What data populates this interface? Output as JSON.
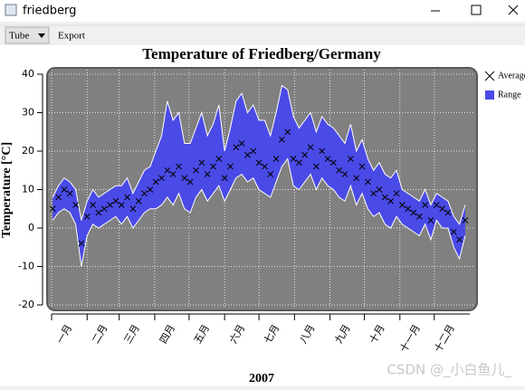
{
  "window": {
    "title": "friedberg"
  },
  "toolbar": {
    "combo": "Tube",
    "button": "Export"
  },
  "watermark": "CSDN @_小白鱼儿_",
  "chart_data": {
    "type": "range",
    "title": "Temperature of Friedberg/Germany",
    "x_label": "2007",
    "y_label": "Temperature [°C]",
    "x": [
      1,
      6,
      11,
      16,
      21,
      26,
      31,
      36,
      41,
      46,
      51,
      56,
      61,
      66,
      71,
      76,
      81,
      86,
      91,
      96,
      101,
      106,
      111,
      116,
      121,
      126,
      131,
      136,
      141,
      146,
      151,
      156,
      161,
      166,
      171,
      176,
      181,
      186,
      191,
      196,
      201,
      206,
      211,
      216,
      221,
      226,
      231,
      236,
      241,
      246,
      251,
      256,
      261,
      266,
      271,
      276,
      281,
      286,
      291,
      296,
      301,
      306,
      311,
      316,
      321,
      326,
      331,
      336,
      341,
      346,
      351,
      356,
      361
    ],
    "xlim": [
      0,
      365
    ],
    "xticks": [
      {
        "value": 0,
        "label": "一月"
      },
      {
        "value": 31,
        "label": "二月"
      },
      {
        "value": 59,
        "label": "三月"
      },
      {
        "value": 90,
        "label": "四月"
      },
      {
        "value": 120,
        "label": "五月"
      },
      {
        "value": 151,
        "label": "六月"
      },
      {
        "value": 181,
        "label": "七月"
      },
      {
        "value": 212,
        "label": "八月"
      },
      {
        "value": 243,
        "label": "九月"
      },
      {
        "value": 273,
        "label": "十月"
      },
      {
        "value": 304,
        "label": "十一月"
      },
      {
        "value": 334,
        "label": "十二月"
      }
    ],
    "ylim": [
      -20,
      40
    ],
    "yticks": [
      -20,
      -10,
      0,
      10,
      20,
      30,
      40
    ],
    "grid": true,
    "legend": "right",
    "series": [
      {
        "name": "Average",
        "color": "#000000",
        "values": [
          5,
          8,
          10,
          9,
          6,
          -4,
          3,
          6,
          4,
          5,
          6,
          7,
          6,
          8,
          5,
          7,
          9,
          10,
          12,
          13,
          15,
          14,
          16,
          13,
          12,
          15,
          17,
          14,
          16,
          18,
          13,
          16,
          21,
          22,
          19,
          20,
          17,
          16,
          14,
          18,
          23,
          25,
          18,
          17,
          19,
          21,
          16,
          20,
          18,
          17,
          15,
          14,
          18,
          13,
          16,
          12,
          9,
          10,
          8,
          7,
          9,
          6,
          5,
          4,
          3,
          6,
          2,
          6,
          5,
          4,
          -1,
          -3,
          2
        ]
      },
      {
        "name": "Range",
        "color": "#4a4ae6",
        "low": [
          2,
          4,
          5,
          4,
          1,
          -10,
          -2,
          1,
          0,
          1,
          2,
          3,
          1,
          3,
          0,
          2,
          4,
          5,
          5,
          6,
          8,
          6,
          9,
          5,
          4,
          8,
          10,
          7,
          9,
          11,
          7,
          10,
          13,
          14,
          12,
          13,
          10,
          9,
          8,
          12,
          16,
          18,
          11,
          10,
          12,
          14,
          10,
          13,
          11,
          10,
          8,
          7,
          11,
          6,
          9,
          5,
          3,
          4,
          1,
          0,
          3,
          1,
          0,
          -1,
          -2,
          1,
          -3,
          2,
          0,
          0,
          -5,
          -8,
          -2
        ],
        "high": [
          8,
          11,
          13,
          12,
          10,
          2,
          7,
          10,
          8,
          9,
          10,
          11,
          11,
          13,
          9,
          12,
          15,
          16,
          20,
          24,
          33,
          28,
          30,
          22,
          22,
          26,
          30,
          24,
          27,
          32,
          20,
          26,
          33,
          35,
          30,
          32,
          28,
          28,
          24,
          30,
          37,
          36,
          29,
          26,
          28,
          30,
          25,
          29,
          27,
          26,
          24,
          22,
          27,
          20,
          23,
          18,
          15,
          17,
          14,
          13,
          15,
          10,
          9,
          8,
          7,
          10,
          6,
          9,
          8,
          7,
          3,
          1,
          6
        ]
      }
    ]
  }
}
